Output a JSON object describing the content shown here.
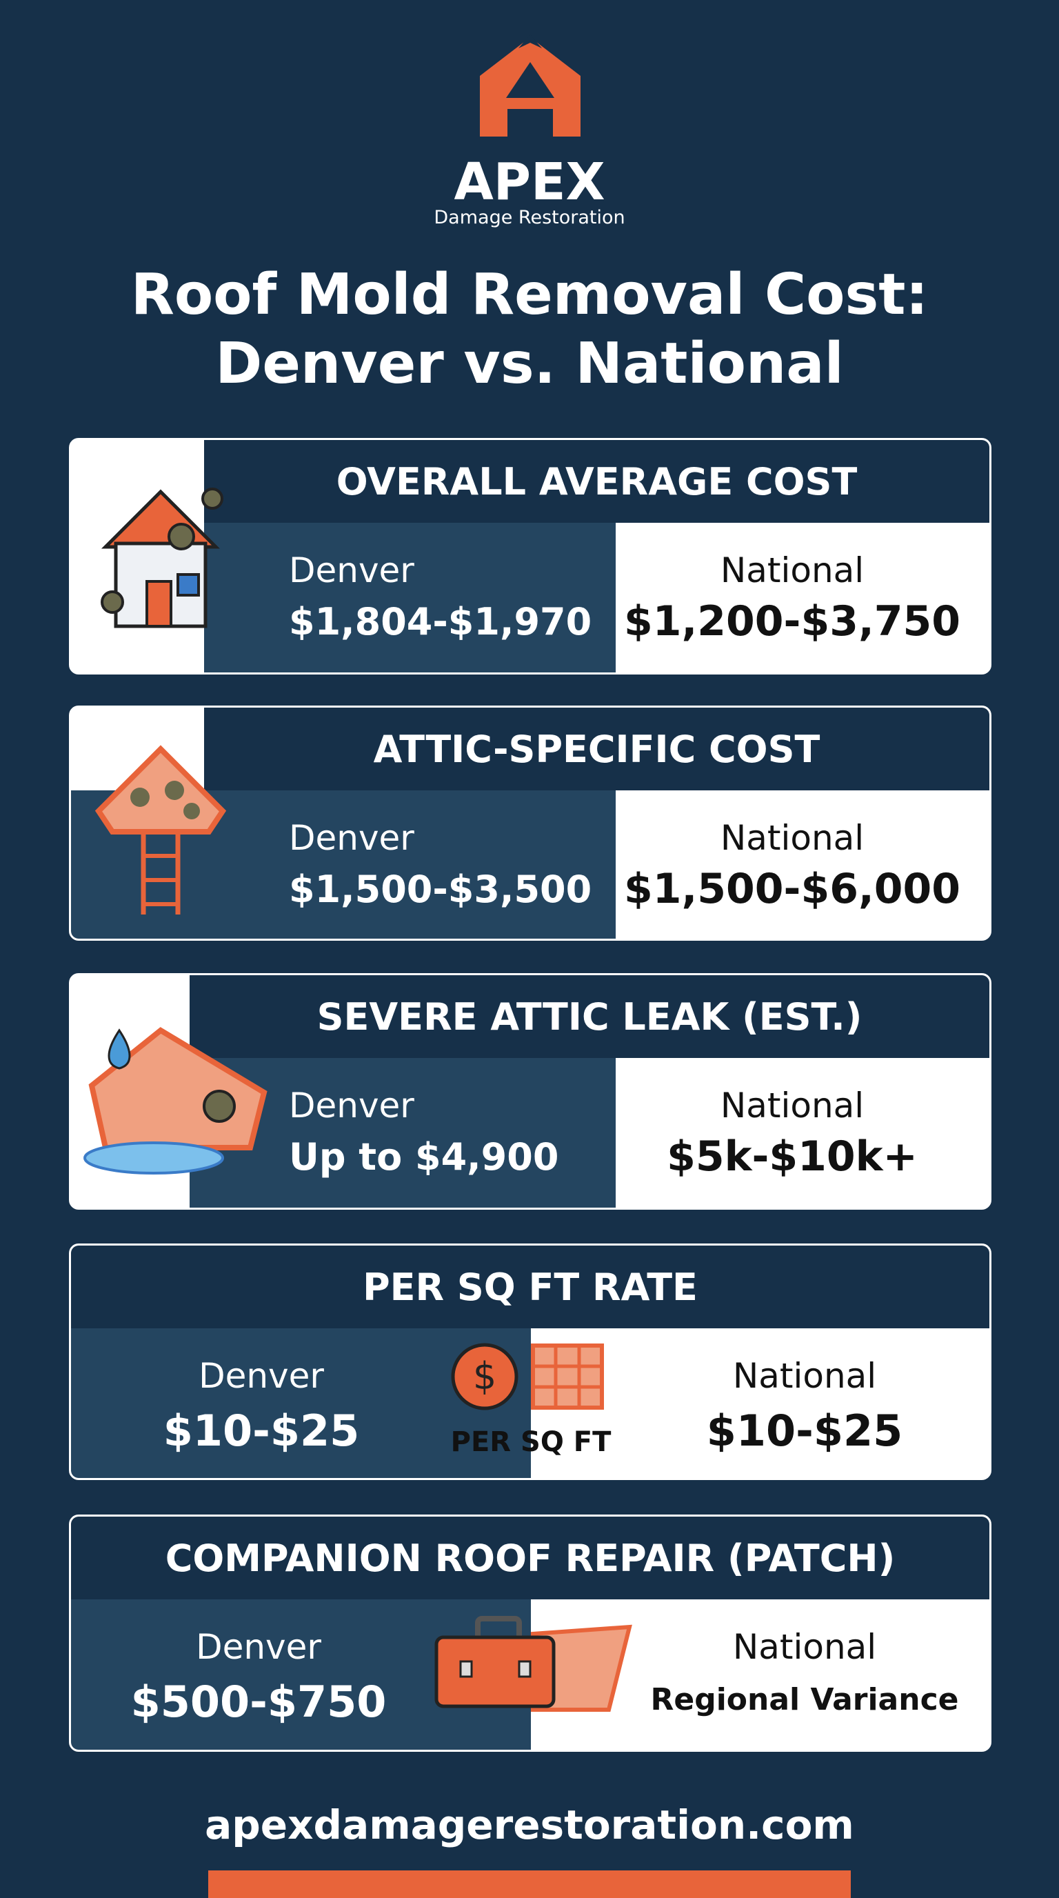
{
  "brand": {
    "name": "APEX",
    "tagline": "Damage Restoration"
  },
  "title": [
    "Roof Mold Removal Cost:",
    "Denver vs. National"
  ],
  "cards": [
    {
      "heading": "OVERALL AVERAGE COST",
      "denver_label": "Denver",
      "denver_value": "$1,804-$1,970",
      "national_label": "National",
      "national_value": "$1,200-$3,750"
    },
    {
      "heading": "ATTIC-SPECIFIC COST",
      "denver_label": "Denver",
      "denver_value": "$1,500-$3,500",
      "national_label": "National",
      "national_value": "$1,500-$6,000"
    },
    {
      "heading": "SEVERE ATTIC LEAK (EST.)",
      "denver_label": "Denver",
      "denver_value": "Up to $4,900",
      "national_label": "National",
      "national_value": "$5k-$10k+"
    },
    {
      "heading": "PER SQ FT RATE",
      "denver_label": "Denver",
      "denver_value": "$10-$25",
      "icon_label": "PER SQ FT",
      "national_label": "National",
      "national_value": "$10-$25"
    },
    {
      "heading": "COMPANION ROOF REPAIR (PATCH)",
      "denver_label": "Denver",
      "denver_value": "$500-$750",
      "national_label": "National",
      "national_value": "Regional Variance"
    }
  ],
  "footer": {
    "url": "apexdamagerestoration.com"
  }
}
